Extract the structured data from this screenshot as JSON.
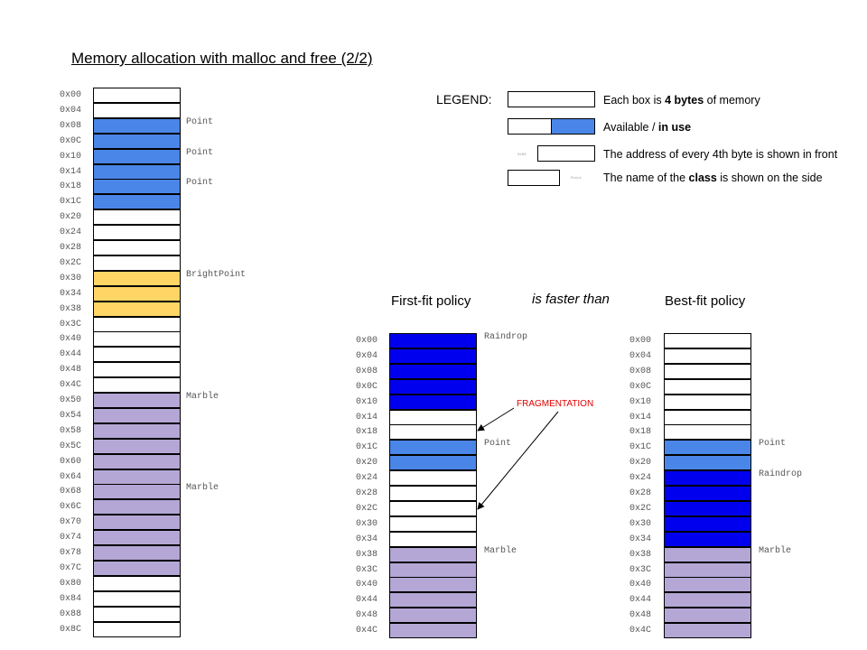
{
  "title": "Memory allocation with malloc and free (2/2)",
  "colors": {
    "free": "#ffffff",
    "point": "#4a86e8",
    "brightpoint": "#ffd666",
    "marble": "#b4a7d6",
    "raindrop": "#0000ee",
    "fragmentation": "#e00000"
  },
  "legend": {
    "label": "LEGEND:",
    "box_text_pre": "Each box is ",
    "box_text_bold": "4 bytes",
    "box_text_post": " of memory",
    "avail_pre": "Available / ",
    "avail_bold": "in use",
    "addr_text": "The address of every 4th byte is shown in front",
    "addr_sample": "0x00",
    "class_pre": "The name of the ",
    "class_bold": "class",
    "class_post": " is shown on the side",
    "class_sample": "Point"
  },
  "headings": {
    "first_fit": "First-fit policy",
    "faster": "is faster than",
    "best_fit": "Best-fit policy"
  },
  "fragmentation_label": "FRAGMENTATION",
  "left_memory": [
    {
      "addr": "0x00",
      "fill": "free"
    },
    {
      "addr": "0x04",
      "fill": "free"
    },
    {
      "addr": "0x08",
      "fill": "point",
      "label": "Point"
    },
    {
      "addr": "0x0C",
      "fill": "point"
    },
    {
      "addr": "0x10",
      "fill": "point",
      "label": "Point"
    },
    {
      "addr": "0x14",
      "fill": "point"
    },
    {
      "addr": "0x18",
      "fill": "point",
      "label": "Point"
    },
    {
      "addr": "0x1C",
      "fill": "point"
    },
    {
      "addr": "0x20",
      "fill": "free"
    },
    {
      "addr": "0x24",
      "fill": "free"
    },
    {
      "addr": "0x28",
      "fill": "free"
    },
    {
      "addr": "0x2C",
      "fill": "free"
    },
    {
      "addr": "0x30",
      "fill": "brightpoint",
      "label": "BrightPoint"
    },
    {
      "addr": "0x34",
      "fill": "brightpoint"
    },
    {
      "addr": "0x38",
      "fill": "brightpoint"
    },
    {
      "addr": "0x3C",
      "fill": "free"
    },
    {
      "addr": "0x40",
      "fill": "free"
    },
    {
      "addr": "0x44",
      "fill": "free"
    },
    {
      "addr": "0x48",
      "fill": "free"
    },
    {
      "addr": "0x4C",
      "fill": "free"
    },
    {
      "addr": "0x50",
      "fill": "marble",
      "label": "Marble"
    },
    {
      "addr": "0x54",
      "fill": "marble"
    },
    {
      "addr": "0x58",
      "fill": "marble"
    },
    {
      "addr": "0x5C",
      "fill": "marble"
    },
    {
      "addr": "0x60",
      "fill": "marble"
    },
    {
      "addr": "0x64",
      "fill": "marble"
    },
    {
      "addr": "0x68",
      "fill": "marble",
      "label": "Marble"
    },
    {
      "addr": "0x6C",
      "fill": "marble"
    },
    {
      "addr": "0x70",
      "fill": "marble"
    },
    {
      "addr": "0x74",
      "fill": "marble"
    },
    {
      "addr": "0x78",
      "fill": "marble"
    },
    {
      "addr": "0x7C",
      "fill": "marble"
    },
    {
      "addr": "0x80",
      "fill": "free"
    },
    {
      "addr": "0x84",
      "fill": "free"
    },
    {
      "addr": "0x88",
      "fill": "free"
    },
    {
      "addr": "0x8C",
      "fill": "free"
    }
  ],
  "first_fit_memory": [
    {
      "addr": "0x00",
      "fill": "raindrop",
      "label": "Raindrop"
    },
    {
      "addr": "0x04",
      "fill": "raindrop"
    },
    {
      "addr": "0x08",
      "fill": "raindrop"
    },
    {
      "addr": "0x0C",
      "fill": "raindrop"
    },
    {
      "addr": "0x10",
      "fill": "raindrop"
    },
    {
      "addr": "0x14",
      "fill": "free"
    },
    {
      "addr": "0x18",
      "fill": "free"
    },
    {
      "addr": "0x1C",
      "fill": "point",
      "label": "Point"
    },
    {
      "addr": "0x20",
      "fill": "point"
    },
    {
      "addr": "0x24",
      "fill": "free"
    },
    {
      "addr": "0x28",
      "fill": "free"
    },
    {
      "addr": "0x2C",
      "fill": "free"
    },
    {
      "addr": "0x30",
      "fill": "free"
    },
    {
      "addr": "0x34",
      "fill": "free"
    },
    {
      "addr": "0x38",
      "fill": "marble",
      "label": "Marble"
    },
    {
      "addr": "0x3C",
      "fill": "marble"
    },
    {
      "addr": "0x40",
      "fill": "marble"
    },
    {
      "addr": "0x44",
      "fill": "marble"
    },
    {
      "addr": "0x48",
      "fill": "marble"
    },
    {
      "addr": "0x4C",
      "fill": "marble"
    }
  ],
  "best_fit_memory": [
    {
      "addr": "0x00",
      "fill": "free"
    },
    {
      "addr": "0x04",
      "fill": "free"
    },
    {
      "addr": "0x08",
      "fill": "free"
    },
    {
      "addr": "0x0C",
      "fill": "free"
    },
    {
      "addr": "0x10",
      "fill": "free"
    },
    {
      "addr": "0x14",
      "fill": "free"
    },
    {
      "addr": "0x18",
      "fill": "free"
    },
    {
      "addr": "0x1C",
      "fill": "point",
      "label": "Point"
    },
    {
      "addr": "0x20",
      "fill": "point"
    },
    {
      "addr": "0x24",
      "fill": "raindrop",
      "label": "Raindrop"
    },
    {
      "addr": "0x28",
      "fill": "raindrop"
    },
    {
      "addr": "0x2C",
      "fill": "raindrop"
    },
    {
      "addr": "0x30",
      "fill": "raindrop"
    },
    {
      "addr": "0x34",
      "fill": "raindrop"
    },
    {
      "addr": "0x38",
      "fill": "marble",
      "label": "Marble"
    },
    {
      "addr": "0x3C",
      "fill": "marble"
    },
    {
      "addr": "0x40",
      "fill": "marble"
    },
    {
      "addr": "0x44",
      "fill": "marble"
    },
    {
      "addr": "0x48",
      "fill": "marble"
    },
    {
      "addr": "0x4C",
      "fill": "marble"
    }
  ]
}
